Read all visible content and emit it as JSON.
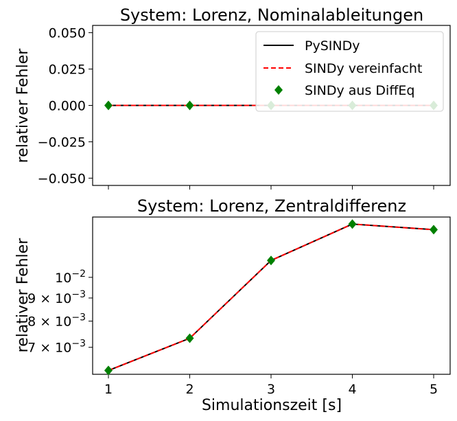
{
  "chart_data": [
    {
      "type": "line",
      "title": "System: Lorenz, Nominalableitungen",
      "xlabel": "",
      "ylabel": "relativer Fehler",
      "x": [
        1,
        2,
        3,
        4,
        5
      ],
      "xticks": [
        "",
        "",
        "",
        "",
        ""
      ],
      "ylim": [
        -0.055,
        0.055
      ],
      "yticks": [
        "0.050",
        "0.025",
        "0.000",
        "−0.025",
        "−0.050"
      ],
      "ytick_values": [
        0.05,
        0.025,
        0.0,
        -0.025,
        -0.05
      ],
      "series": [
        {
          "name": "PySINDy",
          "values": [
            0,
            0,
            0,
            0,
            0
          ],
          "color": "#000000",
          "style": "solid"
        },
        {
          "name": "SINDy vereinfacht",
          "values": [
            0,
            0,
            0,
            0,
            0
          ],
          "color": "#ff0000",
          "style": "dashed"
        },
        {
          "name": "SINDy aus DiffEq",
          "values": [
            0,
            0,
            0,
            0,
            0
          ],
          "color": "#008000",
          "style": "diamond-markers"
        }
      ],
      "legend_position": "top-right",
      "grid": false
    },
    {
      "type": "line",
      "title": "System: Lorenz, Zentraldifferenz",
      "xlabel": "Simulationszeit [s]",
      "ylabel": "relativer Fehler",
      "yscale": "log",
      "x": [
        1,
        2,
        3,
        4,
        5
      ],
      "xticks": [
        "1",
        "2",
        "3",
        "4",
        "5"
      ],
      "ylim": [
        0.0061,
        0.0136
      ],
      "ytick_values": [
        0.01,
        0.009,
        0.008,
        0.007
      ],
      "yticks": [
        {
          "base": "10",
          "exp": "−2",
          "mult": ""
        },
        {
          "base": "10",
          "exp": "−3",
          "mult": "9 × "
        },
        {
          "base": "10",
          "exp": "−3",
          "mult": "8 × "
        },
        {
          "base": "10",
          "exp": "−3",
          "mult": "7 × "
        }
      ],
      "series": [
        {
          "name": "PySINDy",
          "values": [
            0.00622,
            0.00733,
            0.0109,
            0.01312,
            0.01275
          ],
          "color": "#000000",
          "style": "solid"
        },
        {
          "name": "SINDy vereinfacht",
          "values": [
            0.00622,
            0.00733,
            0.0109,
            0.01312,
            0.01275
          ],
          "color": "#ff0000",
          "style": "dashed"
        },
        {
          "name": "SINDy aus DiffEq",
          "values": [
            0.00622,
            0.00733,
            0.0109,
            0.01312,
            0.01275
          ],
          "color": "#008000",
          "style": "diamond-markers"
        }
      ],
      "grid": false
    }
  ]
}
